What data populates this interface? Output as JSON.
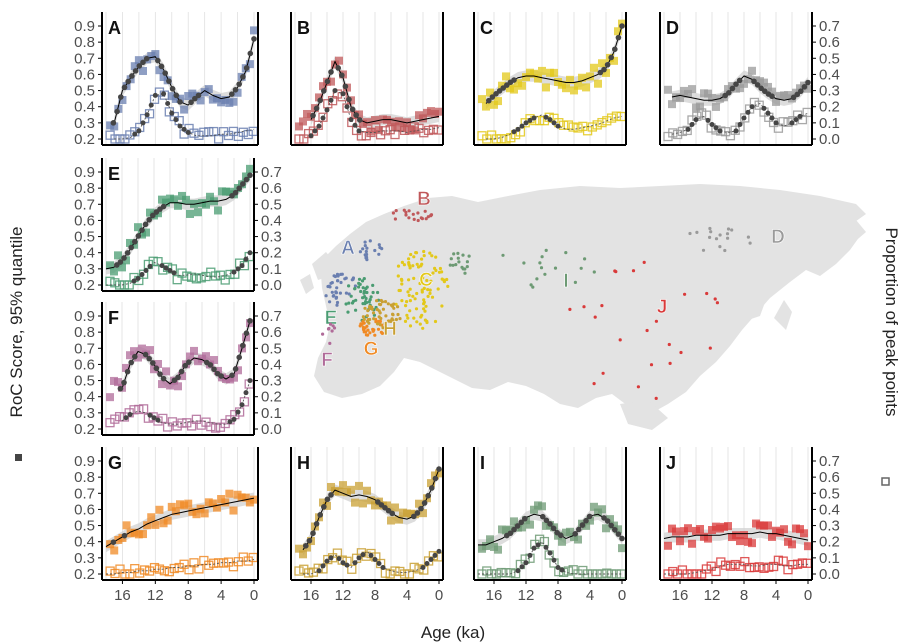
{
  "figure": {
    "left_axis_label": "RoC Score, 95% quantile",
    "right_axis_label": "Proportion of peak points",
    "bottom_axis_label": "Age (ka)",
    "colors": {
      "axis": "#000000",
      "tick_text": "#4d4d4d",
      "grid": "#e0e0e0",
      "smooth_line": "#000000",
      "confidence_band": "#cfcfcf",
      "highlight_point": "#454545",
      "map_land": "#e3e3e3"
    },
    "left_ticks": [
      "0.2",
      "0.3",
      "0.4",
      "0.5",
      "0.6",
      "0.7",
      "0.8",
      "0.9"
    ],
    "right_ticks": [
      "0.0",
      "0.1",
      "0.2",
      "0.3",
      "0.4",
      "0.5",
      "0.6",
      "0.7"
    ],
    "x_ticks": [
      "16",
      "12",
      "8",
      "4",
      "0"
    ]
  },
  "chart_data": [
    {
      "panel": "A",
      "type": "scatter",
      "color": "#6a7fb0",
      "xlim": [
        18,
        0
      ],
      "ylim_roc": [
        0.2,
        0.9
      ],
      "ylim_peak": [
        0,
        0.7
      ],
      "roc_smooth": {
        "x": [
          17,
          16,
          15,
          14,
          13,
          12,
          11,
          10,
          9,
          8,
          7,
          6,
          5,
          4,
          3,
          2,
          1,
          0
        ],
        "y": [
          0.3,
          0.5,
          0.58,
          0.65,
          0.7,
          0.71,
          0.63,
          0.52,
          0.43,
          0.41,
          0.46,
          0.5,
          0.47,
          0.45,
          0.46,
          0.52,
          0.62,
          0.82
        ]
      },
      "peak_smooth": {
        "x": [
          17,
          16,
          15,
          14,
          13,
          12,
          11,
          10,
          9,
          8,
          7,
          6,
          5,
          4,
          3,
          2,
          1,
          0
        ],
        "y": [
          0.0,
          0.0,
          0.01,
          0.05,
          0.15,
          0.27,
          0.28,
          0.16,
          0.08,
          0.04,
          0.02,
          0.02,
          0.02,
          0.03,
          0.03,
          0.04,
          0.05,
          0.06
        ]
      }
    },
    {
      "panel": "B",
      "type": "scatter",
      "color": "#c0585a",
      "xlim": [
        18,
        0
      ],
      "ylim_roc": [
        0.2,
        0.9
      ],
      "ylim_peak": [
        0,
        0.7
      ],
      "roc_smooth": {
        "x": [
          16,
          15,
          14,
          13,
          12,
          11,
          10,
          9,
          8,
          7,
          6,
          5,
          4,
          3,
          2,
          1,
          0
        ],
        "y": [
          0.32,
          0.42,
          0.55,
          0.68,
          0.58,
          0.4,
          0.32,
          0.3,
          0.31,
          0.32,
          0.32,
          0.31,
          0.3,
          0.31,
          0.32,
          0.33,
          0.34
        ]
      },
      "peak_smooth": {
        "x": [
          16,
          15,
          14,
          13,
          12,
          11,
          10,
          9,
          8,
          7,
          6,
          5,
          4,
          3,
          2,
          1,
          0
        ],
        "y": [
          0.02,
          0.08,
          0.18,
          0.3,
          0.28,
          0.12,
          0.05,
          0.04,
          0.04,
          0.05,
          0.05,
          0.05,
          0.04,
          0.05,
          0.06,
          0.06,
          0.07
        ]
      }
    },
    {
      "panel": "C",
      "type": "scatter",
      "color": "#e3c81a",
      "xlim": [
        18,
        0
      ],
      "ylim_roc": [
        0.2,
        0.9
      ],
      "ylim_peak": [
        0,
        0.7
      ],
      "roc_smooth": {
        "x": [
          17,
          16,
          15,
          14,
          13,
          12,
          11,
          10,
          9,
          8,
          7,
          6,
          5,
          4,
          3,
          2,
          1,
          0
        ],
        "y": [
          0.42,
          0.47,
          0.51,
          0.55,
          0.58,
          0.59,
          0.59,
          0.58,
          0.57,
          0.56,
          0.55,
          0.55,
          0.56,
          0.58,
          0.6,
          0.64,
          0.74,
          0.9
        ]
      },
      "peak_smooth": {
        "x": [
          17,
          16,
          15,
          14,
          13,
          12,
          11,
          10,
          9,
          8,
          7,
          6,
          5,
          4,
          3,
          2,
          1,
          0
        ],
        "y": [
          0.0,
          0.0,
          0.01,
          0.03,
          0.06,
          0.1,
          0.13,
          0.15,
          0.12,
          0.08,
          0.06,
          0.06,
          0.07,
          0.08,
          0.09,
          0.11,
          0.13,
          0.14
        ]
      }
    },
    {
      "panel": "D",
      "type": "scatter",
      "color": "#9a9a9a",
      "xlim": [
        18,
        0
      ],
      "ylim_roc": [
        0.2,
        0.9
      ],
      "ylim_peak": [
        0,
        0.7
      ],
      "roc_smooth": {
        "x": [
          17,
          16,
          15,
          14,
          13,
          12,
          11,
          10,
          9,
          8,
          7,
          6,
          5,
          4,
          3,
          2,
          1,
          0
        ],
        "y": [
          0.46,
          0.47,
          0.46,
          0.45,
          0.44,
          0.44,
          0.45,
          0.48,
          0.54,
          0.59,
          0.57,
          0.52,
          0.48,
          0.45,
          0.44,
          0.45,
          0.49,
          0.55
        ]
      },
      "peak_smooth": {
        "x": [
          17,
          16,
          15,
          14,
          13,
          12,
          11,
          10,
          9,
          8,
          7,
          6,
          5,
          4,
          3,
          2,
          1,
          0
        ],
        "y": [
          0.03,
          0.04,
          0.06,
          0.12,
          0.14,
          0.09,
          0.05,
          0.04,
          0.05,
          0.13,
          0.2,
          0.22,
          0.16,
          0.1,
          0.08,
          0.1,
          0.14,
          0.16
        ]
      }
    },
    {
      "panel": "E",
      "type": "scatter",
      "color": "#4a9c72",
      "xlim": [
        18,
        0
      ],
      "ylim_roc": [
        0.2,
        0.9
      ],
      "ylim_peak": [
        0,
        0.7
      ],
      "roc_smooth": {
        "x": [
          18,
          17,
          16,
          15,
          14,
          13,
          12,
          11,
          10,
          9,
          8,
          7,
          6,
          5,
          4,
          3,
          2,
          1,
          0
        ],
        "y": [
          0.3,
          0.31,
          0.35,
          0.42,
          0.5,
          0.58,
          0.64,
          0.68,
          0.71,
          0.71,
          0.7,
          0.7,
          0.71,
          0.72,
          0.72,
          0.73,
          0.76,
          0.82,
          0.88
        ]
      },
      "peak_smooth": {
        "x": [
          18,
          17,
          16,
          15,
          14,
          13,
          12,
          11,
          10,
          9,
          8,
          7,
          6,
          5,
          4,
          3,
          2,
          1,
          0
        ],
        "y": [
          0.0,
          0.0,
          0.0,
          0.01,
          0.04,
          0.09,
          0.14,
          0.12,
          0.09,
          0.06,
          0.06,
          0.07,
          0.06,
          0.05,
          0.05,
          0.06,
          0.08,
          0.12,
          0.2
        ]
      }
    },
    {
      "panel": "F",
      "type": "scatter",
      "color": "#b06b99",
      "xlim": [
        18,
        0
      ],
      "ylim_roc": [
        0.2,
        0.9
      ],
      "ylim_peak": [
        0,
        0.7
      ],
      "roc_smooth": {
        "x": [
          16,
          15,
          14,
          13,
          12,
          11,
          10,
          9,
          8,
          7,
          6,
          5,
          4,
          3,
          2,
          1,
          0
        ],
        "y": [
          0.45,
          0.6,
          0.68,
          0.66,
          0.6,
          0.52,
          0.48,
          0.52,
          0.6,
          0.64,
          0.63,
          0.6,
          0.54,
          0.51,
          0.54,
          0.7,
          0.87
        ]
      },
      "peak_smooth": {
        "x": [
          16,
          15,
          14,
          13,
          12,
          11,
          10,
          9,
          8,
          7,
          6,
          5,
          4,
          3,
          2,
          1,
          0
        ],
        "y": [
          0.05,
          0.09,
          0.11,
          0.1,
          0.07,
          0.04,
          0.03,
          0.03,
          0.04,
          0.05,
          0.05,
          0.04,
          0.03,
          0.03,
          0.06,
          0.15,
          0.3
        ]
      }
    },
    {
      "panel": "G",
      "type": "scatter",
      "color": "#f08a24",
      "xlim": [
        18,
        0
      ],
      "ylim_roc": [
        0.2,
        0.9
      ],
      "ylim_peak": [
        0,
        0.7
      ],
      "roc_smooth": {
        "x": [
          18,
          17,
          16,
          15,
          14,
          13,
          12,
          11,
          10,
          9,
          8,
          7,
          6,
          5,
          4,
          3,
          2,
          1,
          0
        ],
        "y": [
          0.37,
          0.4,
          0.43,
          0.46,
          0.48,
          0.51,
          0.53,
          0.55,
          0.57,
          0.58,
          0.59,
          0.6,
          0.61,
          0.62,
          0.63,
          0.64,
          0.65,
          0.66,
          0.67
        ]
      },
      "peak_smooth": {
        "x": [
          18,
          17,
          16,
          15,
          14,
          13,
          12,
          11,
          10,
          9,
          8,
          7,
          6,
          5,
          4,
          3,
          2,
          1,
          0
        ],
        "y": [
          0.0,
          0.0,
          0.01,
          0.01,
          0.02,
          0.02,
          0.03,
          0.03,
          0.04,
          0.04,
          0.05,
          0.05,
          0.06,
          0.06,
          0.07,
          0.07,
          0.08,
          0.08,
          0.09
        ]
      }
    },
    {
      "panel": "H",
      "type": "scatter",
      "color": "#c9a033",
      "xlim": [
        18,
        0
      ],
      "ylim_roc": [
        0.2,
        0.9
      ],
      "ylim_peak": [
        0,
        0.7
      ],
      "roc_smooth": {
        "x": [
          17,
          16,
          15,
          14,
          13,
          12,
          11,
          10,
          9,
          8,
          7,
          6,
          5,
          4,
          3,
          2,
          1,
          0
        ],
        "y": [
          0.35,
          0.42,
          0.55,
          0.66,
          0.72,
          0.7,
          0.68,
          0.69,
          0.68,
          0.66,
          0.62,
          0.58,
          0.55,
          0.54,
          0.56,
          0.62,
          0.72,
          0.85
        ]
      },
      "peak_smooth": {
        "x": [
          17,
          16,
          15,
          14,
          13,
          12,
          11,
          10,
          9,
          8,
          7,
          6,
          5,
          4,
          3,
          2,
          1,
          0
        ],
        "y": [
          0.0,
          0.0,
          0.02,
          0.08,
          0.12,
          0.07,
          0.04,
          0.1,
          0.14,
          0.09,
          0.04,
          0.02,
          0.01,
          0.01,
          0.02,
          0.04,
          0.09,
          0.14
        ]
      }
    },
    {
      "panel": "I",
      "type": "scatter",
      "color": "#6d9a74",
      "xlim": [
        18,
        0
      ],
      "ylim_roc": [
        0.2,
        0.9
      ],
      "ylim_peak": [
        0,
        0.7
      ],
      "roc_smooth": {
        "x": [
          18,
          17,
          16,
          15,
          14,
          13,
          12,
          11,
          10,
          9,
          8,
          7,
          6,
          5,
          4,
          3,
          2,
          1,
          0
        ],
        "y": [
          0.38,
          0.38,
          0.4,
          0.42,
          0.45,
          0.5,
          0.55,
          0.57,
          0.56,
          0.51,
          0.45,
          0.42,
          0.44,
          0.5,
          0.56,
          0.57,
          0.54,
          0.48,
          0.42
        ]
      },
      "peak_smooth": {
        "x": [
          18,
          17,
          16,
          15,
          14,
          13,
          12,
          11,
          10,
          9,
          8,
          7,
          6,
          5,
          4,
          3,
          2,
          1,
          0
        ],
        "y": [
          0.0,
          0.0,
          0.0,
          0.0,
          0.0,
          0.02,
          0.07,
          0.16,
          0.2,
          0.13,
          0.04,
          0.01,
          0.0,
          0.0,
          0.0,
          0.0,
          0.0,
          0.0,
          0.0
        ]
      }
    },
    {
      "panel": "J",
      "type": "scatter",
      "color": "#d93a3a",
      "xlim": [
        18,
        0
      ],
      "ylim_roc": [
        0.2,
        0.9
      ],
      "ylim_peak": [
        0,
        0.7
      ],
      "roc_smooth": {
        "x": [
          18,
          17,
          16,
          15,
          14,
          13,
          12,
          11,
          10,
          9,
          8,
          7,
          6,
          5,
          4,
          3,
          2,
          1,
          0
        ],
        "y": [
          0.42,
          0.43,
          0.43,
          0.43,
          0.44,
          0.44,
          0.44,
          0.44,
          0.45,
          0.45,
          0.45,
          0.45,
          0.46,
          0.45,
          0.45,
          0.44,
          0.43,
          0.42,
          0.41
        ]
      },
      "peak_smooth": {
        "x": [
          18,
          17,
          16,
          15,
          14,
          13,
          12,
          11,
          10,
          9,
          8,
          7,
          6,
          5,
          4,
          3,
          2,
          1,
          0
        ],
        "y": [
          0.0,
          0.0,
          0.0,
          0.0,
          0.01,
          0.02,
          0.03,
          0.05,
          0.06,
          0.06,
          0.06,
          0.05,
          0.05,
          0.06,
          0.06,
          0.05,
          0.05,
          0.06,
          0.06
        ]
      }
    }
  ],
  "map": {
    "type": "map",
    "regions": [
      {
        "label": "A",
        "color": "#6a7fb0"
      },
      {
        "label": "B",
        "color": "#c0585a"
      },
      {
        "label": "C",
        "color": "#e3c81a"
      },
      {
        "label": "D",
        "color": "#9a9a9a"
      },
      {
        "label": "E",
        "color": "#4a9c72"
      },
      {
        "label": "F",
        "color": "#b06b99"
      },
      {
        "label": "G",
        "color": "#f08a24"
      },
      {
        "label": "H",
        "color": "#c9a033"
      },
      {
        "label": "I",
        "color": "#6d9a74"
      },
      {
        "label": "J",
        "color": "#d93a3a"
      }
    ]
  }
}
